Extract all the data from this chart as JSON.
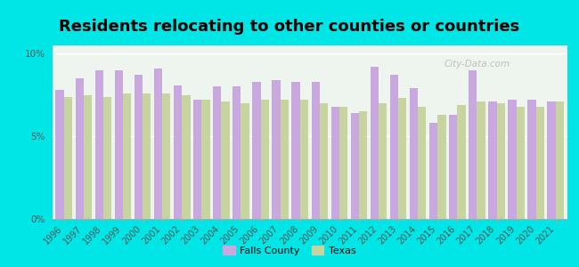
{
  "title": "Residents relocating to other counties or countries",
  "years": [
    1996,
    1997,
    1998,
    1999,
    2000,
    2001,
    2002,
    2003,
    2004,
    2005,
    2006,
    2007,
    2008,
    2009,
    2010,
    2011,
    2012,
    2013,
    2014,
    2015,
    2016,
    2017,
    2018,
    2019,
    2020,
    2021
  ],
  "falls_county": [
    7.8,
    8.5,
    9.0,
    9.0,
    8.7,
    9.1,
    8.1,
    7.2,
    8.0,
    8.0,
    8.3,
    8.4,
    8.3,
    8.3,
    6.8,
    6.4,
    9.2,
    8.7,
    7.9,
    5.8,
    6.3,
    9.0,
    7.1,
    7.2,
    7.2,
    7.1
  ],
  "texas": [
    7.4,
    7.5,
    7.4,
    7.6,
    7.6,
    7.6,
    7.5,
    7.2,
    7.1,
    7.0,
    7.2,
    7.2,
    7.2,
    7.0,
    6.8,
    6.5,
    7.0,
    7.3,
    6.8,
    6.3,
    6.9,
    7.1,
    7.0,
    6.8,
    6.8,
    7.1
  ],
  "falls_color": "#c9a8e0",
  "texas_color": "#c8d4a0",
  "background_color": "#00e5e5",
  "plot_bg_top": "#eef5ee",
  "plot_bg_bottom": "#ddeedd",
  "ylabel_ticks": [
    "0%",
    "5%",
    "10%"
  ],
  "ylim": [
    0,
    10.5
  ],
  "yticks": [
    0,
    5,
    10
  ],
  "legend_falls": "Falls County",
  "legend_texas": "Texas",
  "title_fontsize": 13,
  "tick_fontsize": 7.5,
  "watermark": "City-Data.com"
}
